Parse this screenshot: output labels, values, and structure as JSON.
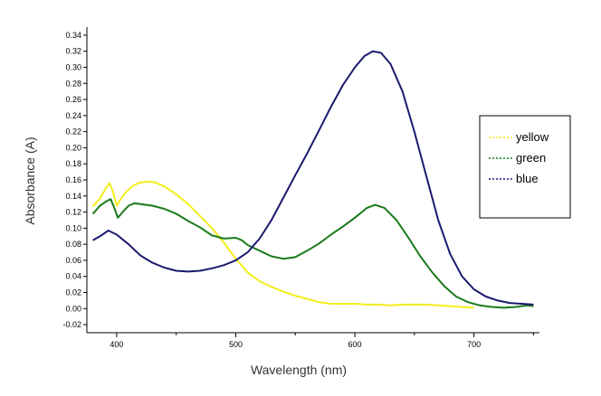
{
  "chart_data": {
    "type": "line",
    "title": "",
    "xlabel": "Wavelength (nm)",
    "ylabel": "Absorbance (A)",
    "xlim": [
      375,
      755
    ],
    "ylim": [
      -0.03,
      0.35
    ],
    "x_ticks": [
      400,
      500,
      600,
      700
    ],
    "x_tick_labels": [
      "400",
      "500",
      "600",
      "700"
    ],
    "y_ticks": [
      -0.02,
      0.0,
      0.02,
      0.04,
      0.06,
      0.08,
      0.1,
      0.12,
      0.14,
      0.16,
      0.18,
      0.2,
      0.22,
      0.24,
      0.26,
      0.28,
      0.3,
      0.32,
      0.34
    ],
    "y_tick_labels": [
      "-0.02",
      "0.00",
      "0.02",
      "0.04",
      "0.06",
      "0.08",
      "0.10",
      "0.12",
      "0.14",
      "0.16",
      "0.18",
      "0.20",
      "0.22",
      "0.24",
      "0.26",
      "0.28",
      "0.30",
      "0.32",
      "0.34"
    ],
    "grid": false,
    "legend_position": "right",
    "series": [
      {
        "name": "yellow",
        "color": "#f2ee1a",
        "points": [
          [
            380,
            0.127
          ],
          [
            386,
            0.137
          ],
          [
            391,
            0.15
          ],
          [
            394,
            0.156
          ],
          [
            397,
            0.145
          ],
          [
            400,
            0.128
          ],
          [
            403,
            0.135
          ],
          [
            408,
            0.145
          ],
          [
            413,
            0.152
          ],
          [
            418,
            0.156
          ],
          [
            425,
            0.158
          ],
          [
            432,
            0.157
          ],
          [
            440,
            0.152
          ],
          [
            450,
            0.142
          ],
          [
            460,
            0.13
          ],
          [
            470,
            0.115
          ],
          [
            480,
            0.1
          ],
          [
            490,
            0.082
          ],
          [
            500,
            0.062
          ],
          [
            510,
            0.045
          ],
          [
            520,
            0.034
          ],
          [
            530,
            0.027
          ],
          [
            540,
            0.021
          ],
          [
            550,
            0.016
          ],
          [
            560,
            0.012
          ],
          [
            570,
            0.008
          ],
          [
            580,
            0.006
          ],
          [
            590,
            0.006
          ],
          [
            600,
            0.006
          ],
          [
            610,
            0.005
          ],
          [
            620,
            0.005
          ],
          [
            630,
            0.004
          ],
          [
            640,
            0.005
          ],
          [
            650,
            0.005
          ],
          [
            660,
            0.005
          ],
          [
            670,
            0.004
          ],
          [
            680,
            0.003
          ],
          [
            690,
            0.002
          ],
          [
            700,
            0.001
          ]
        ]
      },
      {
        "name": "green",
        "color": "#1a7a1a",
        "points": [
          [
            380,
            0.118
          ],
          [
            386,
            0.128
          ],
          [
            392,
            0.134
          ],
          [
            395,
            0.136
          ],
          [
            398,
            0.125
          ],
          [
            401,
            0.113
          ],
          [
            405,
            0.12
          ],
          [
            410,
            0.128
          ],
          [
            415,
            0.131
          ],
          [
            420,
            0.13
          ],
          [
            430,
            0.128
          ],
          [
            440,
            0.124
          ],
          [
            450,
            0.118
          ],
          [
            460,
            0.109
          ],
          [
            470,
            0.101
          ],
          [
            480,
            0.091
          ],
          [
            490,
            0.087
          ],
          [
            500,
            0.088
          ],
          [
            505,
            0.085
          ],
          [
            510,
            0.079
          ],
          [
            520,
            0.072
          ],
          [
            530,
            0.065
          ],
          [
            540,
            0.062
          ],
          [
            550,
            0.064
          ],
          [
            560,
            0.072
          ],
          [
            570,
            0.081
          ],
          [
            580,
            0.092
          ],
          [
            590,
            0.102
          ],
          [
            600,
            0.113
          ],
          [
            610,
            0.125
          ],
          [
            617,
            0.129
          ],
          [
            625,
            0.125
          ],
          [
            635,
            0.11
          ],
          [
            645,
            0.088
          ],
          [
            655,
            0.065
          ],
          [
            665,
            0.045
          ],
          [
            675,
            0.028
          ],
          [
            685,
            0.015
          ],
          [
            695,
            0.008
          ],
          [
            705,
            0.004
          ],
          [
            715,
            0.002
          ],
          [
            725,
            0.001
          ],
          [
            735,
            0.002
          ],
          [
            745,
            0.004
          ],
          [
            750,
            0.003
          ]
        ]
      },
      {
        "name": "blue",
        "color": "#1a1a6e",
        "points": [
          [
            380,
            0.085
          ],
          [
            386,
            0.09
          ],
          [
            393,
            0.097
          ],
          [
            400,
            0.092
          ],
          [
            410,
            0.08
          ],
          [
            420,
            0.066
          ],
          [
            430,
            0.057
          ],
          [
            440,
            0.051
          ],
          [
            450,
            0.047
          ],
          [
            460,
            0.046
          ],
          [
            470,
            0.047
          ],
          [
            480,
            0.05
          ],
          [
            490,
            0.054
          ],
          [
            500,
            0.06
          ],
          [
            510,
            0.07
          ],
          [
            520,
            0.087
          ],
          [
            530,
            0.11
          ],
          [
            540,
            0.138
          ],
          [
            550,
            0.166
          ],
          [
            560,
            0.193
          ],
          [
            570,
            0.222
          ],
          [
            580,
            0.251
          ],
          [
            590,
            0.278
          ],
          [
            600,
            0.3
          ],
          [
            608,
            0.314
          ],
          [
            615,
            0.32
          ],
          [
            622,
            0.318
          ],
          [
            630,
            0.304
          ],
          [
            640,
            0.27
          ],
          [
            650,
            0.22
          ],
          [
            660,
            0.165
          ],
          [
            670,
            0.11
          ],
          [
            680,
            0.068
          ],
          [
            690,
            0.04
          ],
          [
            700,
            0.024
          ],
          [
            710,
            0.015
          ],
          [
            720,
            0.01
          ],
          [
            730,
            0.007
          ],
          [
            740,
            0.006
          ],
          [
            750,
            0.005
          ]
        ]
      }
    ]
  }
}
